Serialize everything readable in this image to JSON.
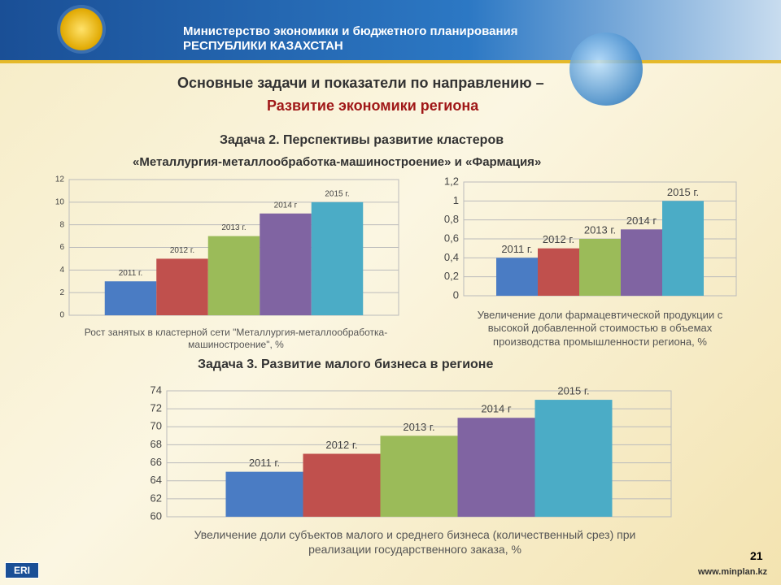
{
  "header": {
    "ministry": "Министерство экономики и бюджетного планирования",
    "republic": "РЕСПУБЛИКИ КАЗАХСТАН",
    "title": "Основные задачи и показатели по направлению –",
    "subtitle": "Развитие экономики региона",
    "task2_line1": "Задача 2. Перспективы развитие кластеров",
    "task2_line2": "«Металлургия-металлообработка-машиностроение» и «Фармация»",
    "task3": "Задача 3. Развитие малого бизнеса в регионе"
  },
  "footer": {
    "logo": "ERI",
    "page": "21",
    "site": "www.minplan.kz"
  },
  "chart_data": [
    {
      "type": "bar",
      "x_label": "Рост занятых в кластерной сети \"Металлургия-металлообработка-машиностроение\", %",
      "categories": [
        "2011 г.",
        "2012 г.",
        "2013 г.",
        "2014 г",
        "2015 г."
      ],
      "values": [
        3,
        5,
        7,
        9,
        10
      ],
      "colors": [
        "#4a7cc4",
        "#c0504d",
        "#9bbb59",
        "#8064a2",
        "#4bacc6"
      ],
      "ylim": [
        0,
        12
      ],
      "yticks": [
        0,
        2,
        4,
        6,
        8,
        10,
        12
      ],
      "grid": true
    },
    {
      "type": "bar",
      "x_label": "Увеличение доли фармацевтической продукции с высокой добавленной стоимостью в объемах производства промышленности региона, %",
      "categories": [
        "2011 г.",
        "2012 г.",
        "2013 г.",
        "2014 г",
        "2015 г."
      ],
      "values": [
        0.4,
        0.5,
        0.6,
        0.7,
        1
      ],
      "colors": [
        "#4a7cc4",
        "#c0504d",
        "#9bbb59",
        "#8064a2",
        "#4bacc6"
      ],
      "ylim": [
        0,
        1.2
      ],
      "yticks": [
        0,
        {
          "value": 0.2,
          "label": "0,2"
        },
        {
          "value": 0.4,
          "label": "0,4"
        },
        {
          "value": 0.6,
          "label": "0,6"
        },
        {
          "value": 0.8,
          "label": "0,8"
        },
        1,
        {
          "value": 1.2,
          "label": "1,2"
        }
      ],
      "grid": true
    },
    {
      "type": "bar",
      "x_label": "Увеличение доли субъектов малого и среднего бизнеса (количественный срез) при реализации государственного заказа, %",
      "categories": [
        "2011 г.",
        "2012 г.",
        "2013 г.",
        "2014 г",
        "2015 г."
      ],
      "values": [
        65,
        67,
        69,
        71,
        73
      ],
      "colors": [
        "#4a7cc4",
        "#c0504d",
        "#9bbb59",
        "#8064a2",
        "#4bacc6"
      ],
      "ylim": [
        60,
        74
      ],
      "yticks": [
        60,
        62,
        64,
        66,
        68,
        70,
        72,
        74
      ],
      "grid": true
    }
  ]
}
